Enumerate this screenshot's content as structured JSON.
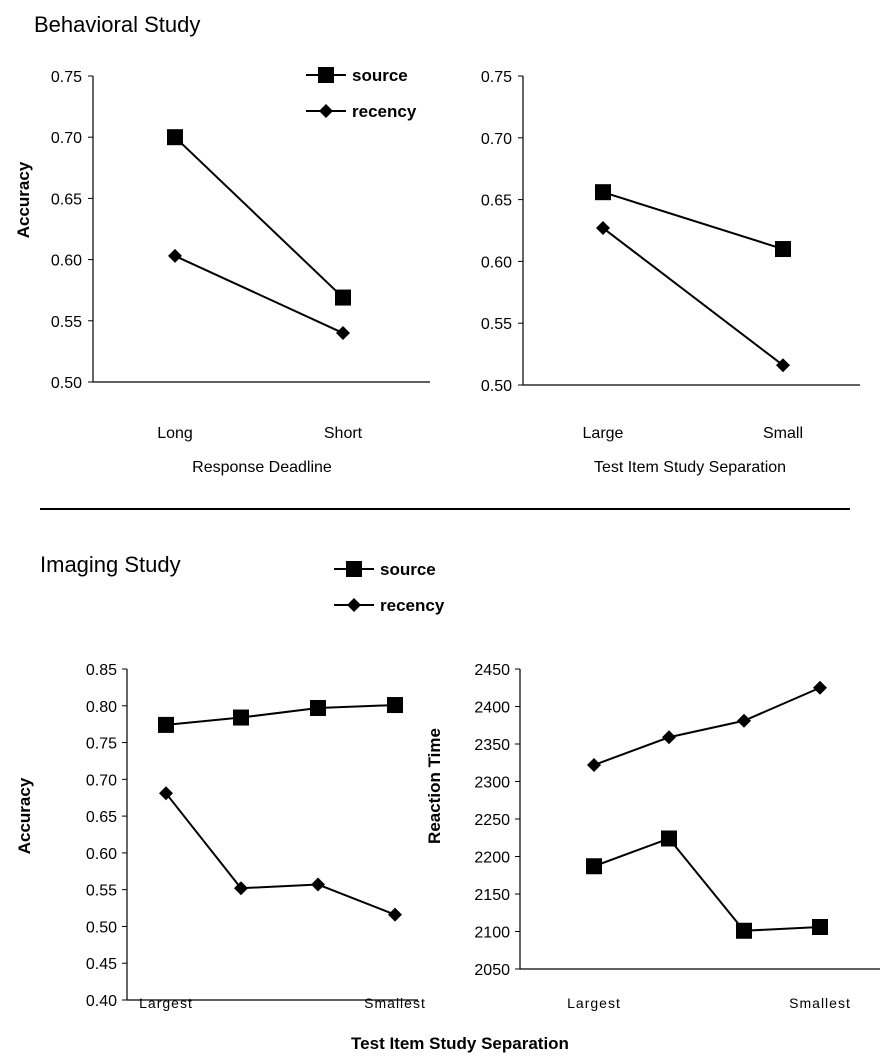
{
  "sections": {
    "behavioral_title": "Behavioral Study",
    "imaging_title": "Imaging Study"
  },
  "legend": {
    "source": "source",
    "recency": "recency"
  },
  "chart_data": [
    {
      "id": "behav-deadline",
      "type": "line",
      "title": "",
      "xlabel": "Response Deadline",
      "ylabel": "Accuracy",
      "categories": [
        "Long",
        "Short"
      ],
      "ylim": [
        0.5,
        0.75
      ],
      "yticks": [
        "0.50",
        "0.55",
        "0.60",
        "0.65",
        "0.70",
        "0.75"
      ],
      "series": [
        {
          "name": "source",
          "marker": "square",
          "values": [
            0.7,
            0.569
          ]
        },
        {
          "name": "recency",
          "marker": "diamond",
          "values": [
            0.603,
            0.54
          ]
        }
      ],
      "grid": false,
      "legend": "top-right"
    },
    {
      "id": "behav-separation",
      "type": "line",
      "title": "",
      "xlabel": "Test Item Study Separation",
      "ylabel": "",
      "categories": [
        "Large",
        "Small"
      ],
      "ylim": [
        0.5,
        0.75
      ],
      "yticks": [
        "0.50",
        "0.55",
        "0.60",
        "0.65",
        "0.70",
        "0.75"
      ],
      "series": [
        {
          "name": "source",
          "marker": "square",
          "values": [
            0.656,
            0.61
          ]
        },
        {
          "name": "recency",
          "marker": "diamond",
          "values": [
            0.627,
            0.516
          ]
        }
      ],
      "grid": false
    },
    {
      "id": "imaging-accuracy",
      "type": "line",
      "title": "",
      "xlabel": "",
      "ylabel": "Accuracy",
      "categories": [
        "Largest",
        "",
        "",
        "Smallest"
      ],
      "ylim": [
        0.4,
        0.85
      ],
      "yticks": [
        "0.40",
        "0.45",
        "0.50",
        "0.55",
        "0.60",
        "0.65",
        "0.70",
        "0.75",
        "0.80",
        "0.85"
      ],
      "series": [
        {
          "name": "source",
          "marker": "square",
          "values": [
            0.774,
            0.784,
            0.797,
            0.801
          ]
        },
        {
          "name": "recency",
          "marker": "diamond",
          "values": [
            0.681,
            0.552,
            0.557,
            0.516
          ]
        }
      ],
      "grid": false,
      "legend": "top"
    },
    {
      "id": "imaging-rt",
      "type": "line",
      "title": "",
      "xlabel": "",
      "ylabel": "Reaction Time",
      "categories": [
        "Largest",
        "",
        "",
        "Smallest"
      ],
      "ylim": [
        2050,
        2450
      ],
      "yticks": [
        "2050",
        "2100",
        "2150",
        "2200",
        "2250",
        "2300",
        "2350",
        "2400",
        "2450"
      ],
      "series": [
        {
          "name": "source",
          "marker": "square",
          "values": [
            2187,
            2224,
            2101,
            2106
          ]
        },
        {
          "name": "recency",
          "marker": "diamond",
          "values": [
            2322,
            2359,
            2381,
            2425
          ]
        }
      ],
      "grid": false
    }
  ],
  "shared_xlabel": "Test Item Study Separation"
}
